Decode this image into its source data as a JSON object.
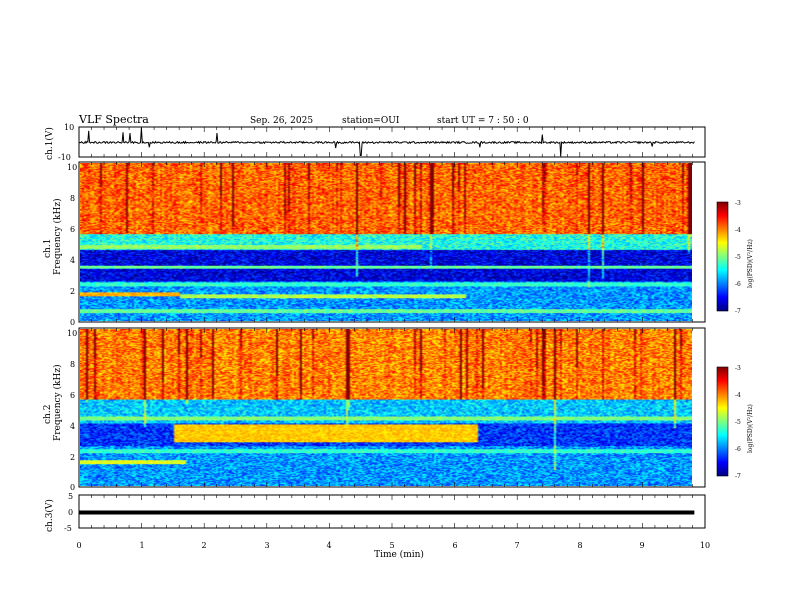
{
  "header": {
    "title": "VLF Spectra",
    "date": "Sep. 26, 2025",
    "station": "station=OUI",
    "start": "start  UT  =   7 : 50 : 0"
  },
  "colors": {
    "trace": "#000000",
    "cmap": [
      "#00007f",
      "#0000ff",
      "#007fff",
      "#00ffff",
      "#7fff7f",
      "#ffff00",
      "#ff7f00",
      "#ff0000",
      "#7f0000"
    ]
  },
  "chart_data": [
    {
      "type": "line",
      "name": "ch1-waveform",
      "ylabel": "ch.1(V)",
      "ylim": [
        -10,
        10
      ],
      "yticks": [
        "10",
        "-10"
      ],
      "xlim": [
        0,
        10
      ],
      "baseline": -0.3,
      "spikes": [
        {
          "t": 0.15,
          "v": 7.5
        },
        {
          "t": 0.7,
          "v": 6.5
        },
        {
          "t": 0.82,
          "v": 6.0
        },
        {
          "t": 1.0,
          "v": 9.5
        },
        {
          "t": 1.12,
          "v": -3.5
        },
        {
          "t": 2.2,
          "v": 6.0
        },
        {
          "t": 4.1,
          "v": -4.0
        },
        {
          "t": 4.5,
          "v": -9.0
        },
        {
          "t": 6.4,
          "v": -3.5
        },
        {
          "t": 7.4,
          "v": 5.0
        },
        {
          "t": 7.7,
          "v": -9.5
        },
        {
          "t": 9.15,
          "v": -3.0
        }
      ]
    },
    {
      "type": "heatmap",
      "name": "ch1-spectrogram",
      "ylabel": "ch.1",
      "ylabel2": "Frequency  (kHz)",
      "ylim": [
        0,
        10
      ],
      "yticks": [
        "0",
        "2",
        "4",
        "6",
        "8",
        "10"
      ],
      "xlim": [
        0,
        9.83
      ],
      "colorbar": {
        "label": "log(PSD)(V²/Hz)",
        "range": [
          -7,
          -3
        ],
        "ticks": [
          "-3",
          "-4",
          "-5",
          "-6",
          "-7"
        ]
      },
      "bands": [
        {
          "f": [
            5.5,
            10
          ],
          "level": -3.9
        },
        {
          "f": [
            4.5,
            5.5
          ],
          "level": -5.4
        },
        {
          "f": [
            2.5,
            4.5
          ],
          "level": -6.6
        },
        {
          "f": [
            0,
            2.5
          ],
          "level": -5.9
        }
      ],
      "lines": [
        {
          "f": 1.65,
          "t": [
            0,
            1.6
          ],
          "level": -4.2
        },
        {
          "f": 1.55,
          "t": [
            1.6,
            6.2
          ],
          "level": -4.8
        },
        {
          "f": 4.7,
          "t": [
            0,
            5.5
          ],
          "level": -4.9
        },
        {
          "f": 3.4,
          "t": [
            0,
            9.83
          ],
          "level": -5.1
        },
        {
          "f": 2.3,
          "t": [
            0,
            9.83
          ],
          "level": -5.3
        },
        {
          "f": 0.6,
          "t": [
            0,
            9.83
          ],
          "level": -5.1
        }
      ]
    },
    {
      "type": "heatmap",
      "name": "ch2-spectrogram",
      "ylabel": "ch.2",
      "ylabel2": "Frequency  (kHz)",
      "ylim": [
        0,
        10
      ],
      "yticks": [
        "0",
        "2",
        "4",
        "6",
        "8",
        "10"
      ],
      "xlim": [
        0,
        9.83
      ],
      "colorbar": {
        "label": "log(PSD)(V²/Hz)",
        "range": [
          -7,
          -3
        ],
        "ticks": [
          "-3",
          "-4",
          "-5",
          "-6",
          "-7"
        ]
      },
      "bands": [
        {
          "f": [
            5.5,
            10
          ],
          "level": -4.0
        },
        {
          "f": [
            4.0,
            5.5
          ],
          "level": -5.7
        },
        {
          "f": [
            2.5,
            4.0
          ],
          "level": -6.3
        },
        {
          "f": [
            0,
            2.5
          ],
          "level": -5.9
        }
      ],
      "lines": [
        {
          "f": 3.35,
          "t": [
            1.5,
            6.4
          ],
          "level": -4.3,
          "width": 0.55
        },
        {
          "f": 1.5,
          "t": [
            0,
            1.7
          ],
          "level": -4.6
        },
        {
          "f": 4.3,
          "t": [
            0,
            9.83
          ],
          "level": -5.0
        },
        {
          "f": 2.2,
          "t": [
            0,
            9.83
          ],
          "level": -5.3
        },
        {
          "f": 6.6,
          "t": [
            0,
            6.0
          ],
          "level": -4.4
        }
      ]
    },
    {
      "type": "line",
      "name": "ch3-waveform",
      "ylabel": "ch.3(V)",
      "ylim": [
        -5,
        5
      ],
      "yticks": [
        "5",
        "0",
        "-5"
      ],
      "xlim": [
        0,
        10
      ],
      "baseline": -0.3,
      "xlabel": "Time  (min)",
      "xticks": [
        "0",
        "1",
        "2",
        "3",
        "4",
        "5",
        "6",
        "7",
        "8",
        "9",
        "10"
      ]
    }
  ]
}
